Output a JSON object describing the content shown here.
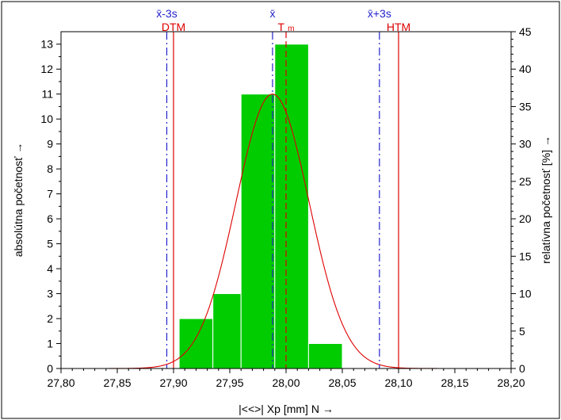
{
  "chart_data": {
    "type": "bar",
    "xlabel": "|<<>|  Xp [mm]  N →",
    "ylabel_left": "absolútna početnosť →",
    "ylabel_right": "relatívna početnosť  [%] →",
    "xlim": [
      27.8,
      28.2
    ],
    "ylim_left": [
      0,
      13.5
    ],
    "ylim_right": [
      0,
      45
    ],
    "x_ticks": [
      27.8,
      27.85,
      27.9,
      27.95,
      28.0,
      28.05,
      28.1,
      28.15,
      28.2
    ],
    "x_tick_labels": [
      "27,80",
      "27,85",
      "27,90",
      "27,95",
      "28,00",
      "28,05",
      "28,10",
      "28,15",
      "28,20"
    ],
    "y_left_ticks": [
      0,
      1,
      2,
      3,
      4,
      5,
      6,
      7,
      8,
      9,
      10,
      11,
      12,
      13
    ],
    "y_right_ticks": [
      0,
      5,
      10,
      15,
      20,
      25,
      30,
      35,
      40,
      45
    ],
    "bins": [
      {
        "x0": 27.905,
        "x1": 27.935,
        "count": 2
      },
      {
        "x0": 27.935,
        "x1": 27.96,
        "count": 3
      },
      {
        "x0": 27.96,
        "x1": 27.99,
        "count": 11
      },
      {
        "x0": 27.99,
        "x1": 28.02,
        "count": 13
      },
      {
        "x0": 28.02,
        "x1": 28.05,
        "count": 1
      }
    ],
    "bar_color": "#00cc00",
    "normal_curve": {
      "mean": 27.988,
      "sd": 0.0325,
      "peak": 11.0,
      "color": "#dd0000"
    },
    "vlines": [
      {
        "label": "DTM",
        "x": 27.9,
        "color": "#dd0000",
        "style": "solid"
      },
      {
        "label": "T",
        "sub": "m",
        "x": 28.0,
        "color": "#dd0000",
        "style": "dashed"
      },
      {
        "label": "HTM",
        "x": 28.1,
        "color": "#dd0000",
        "style": "solid"
      },
      {
        "label": "x̄-3s",
        "x": 27.894,
        "color": "#2222cc",
        "style": "dashdot"
      },
      {
        "label": "x̄",
        "x": 27.988,
        "color": "#2222cc",
        "style": "dashdot"
      },
      {
        "label": "x̄+3s",
        "x": 28.083,
        "color": "#2222cc",
        "style": "dashdot"
      }
    ]
  }
}
